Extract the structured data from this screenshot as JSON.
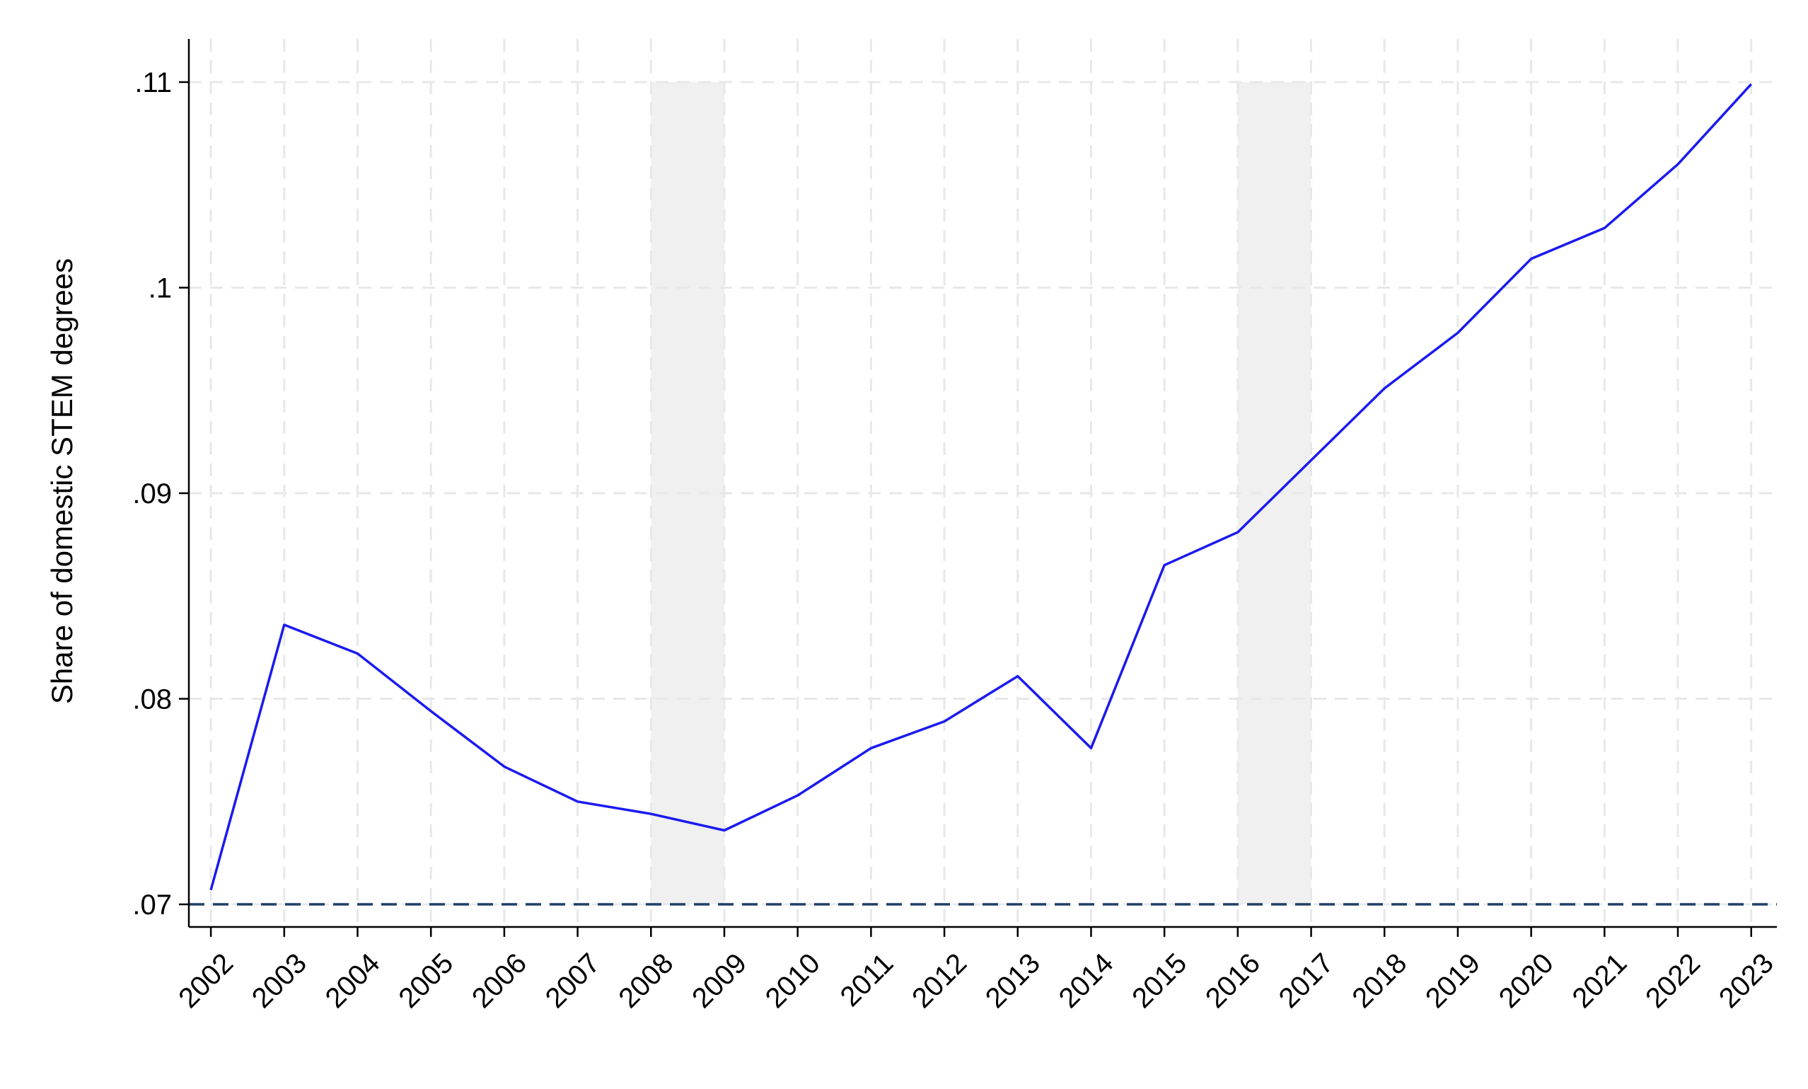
{
  "chart_data": {
    "type": "line",
    "title": "",
    "xlabel": "",
    "ylabel": "Share of domestic STEM degrees",
    "x": [
      2002,
      2003,
      2004,
      2005,
      2006,
      2007,
      2008,
      2009,
      2010,
      2011,
      2012,
      2013,
      2014,
      2015,
      2016,
      2017,
      2018,
      2019,
      2020,
      2021,
      2022,
      2023
    ],
    "x_tick_labels": [
      "2002",
      "2003",
      "2004",
      "2005",
      "2006",
      "2007",
      "2008",
      "2009",
      "2010",
      "2011",
      "2012",
      "2013",
      "2014",
      "2015",
      "2016",
      "2017",
      "2018",
      "2019",
      "2020",
      "2021",
      "2022",
      "2023"
    ],
    "series": [
      {
        "values": [
          0.0707,
          0.0836,
          0.0822,
          0.0794,
          0.0767,
          0.075,
          0.0744,
          0.0736,
          0.0753,
          0.0776,
          0.0789,
          0.0811,
          0.0776,
          0.0865,
          0.0881,
          0.0916,
          0.0951,
          0.0978,
          0.1014,
          0.1029,
          0.106,
          0.1099
        ],
        "color": "#1a1af0"
      }
    ],
    "y_ticks": [
      0.07,
      0.08,
      0.09,
      0.1,
      0.11
    ],
    "y_tick_labels": [
      ".07",
      ".08",
      ".09",
      ".1",
      ".11"
    ],
    "xlim": [
      2001.7,
      2023.35
    ],
    "ylim": [
      0.0689,
      0.1121
    ],
    "shaded_periods": [
      [
        2008,
        2009
      ],
      [
        2016,
        2017
      ]
    ],
    "shade_color": "#f0f0f0",
    "reference_line": {
      "y": 0.07,
      "style": "dashed",
      "color": "#1f3f66"
    },
    "grid": true,
    "grid_style": "dashed",
    "grid_color": "#e8e8e8",
    "legend": "none"
  }
}
